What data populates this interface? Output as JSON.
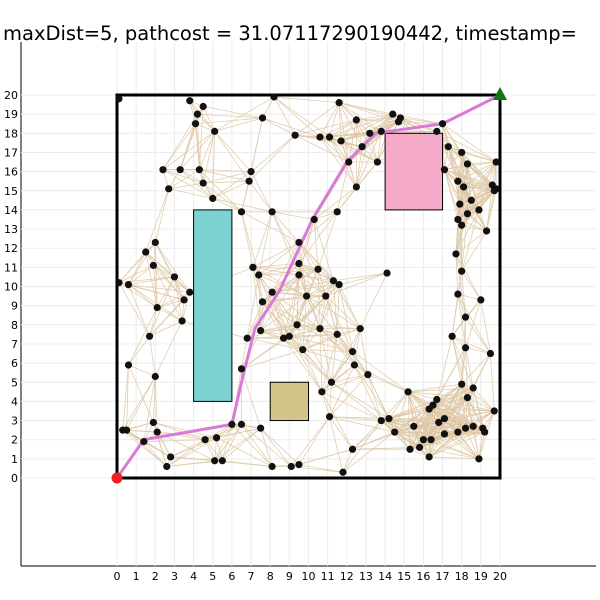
{
  "chart_data": {
    "type": "scatter",
    "title": "maxDist=5,  pathcost = 31.07117290190442, timestamp=",
    "xlabel": "",
    "ylabel": "",
    "xlim": [
      0,
      20
    ],
    "ylim": [
      0,
      20
    ],
    "xticks": [
      "0",
      "1",
      "2",
      "3",
      "4",
      "5",
      "6",
      "7",
      "8",
      "9",
      "10",
      "11",
      "12",
      "13",
      "14",
      "15",
      "16",
      "17",
      "18",
      "19",
      "20"
    ],
    "yticks": [
      "0",
      "1",
      "2",
      "3",
      "4",
      "5",
      "6",
      "7",
      "8",
      "9",
      "10",
      "11",
      "12",
      "13",
      "14",
      "15",
      "16",
      "17",
      "18",
      "19",
      "20"
    ],
    "grid": true,
    "legend": "none",
    "boundary": [
      [
        0,
        0
      ],
      [
        20,
        0
      ],
      [
        20,
        20
      ],
      [
        0,
        20
      ]
    ],
    "obstacles": [
      {
        "x": 4,
        "y": 4,
        "w": 2,
        "h": 10,
        "color": "#7dd3d3"
      },
      {
        "x": 14,
        "y": 14,
        "w": 3,
        "h": 4,
        "color": "#f4aac8"
      },
      {
        "x": 8,
        "y": 3,
        "w": 2,
        "h": 2,
        "color": "#d4c48a"
      }
    ],
    "start": [
      0,
      0
    ],
    "goal": [
      20,
      20
    ],
    "start_color": "#ee2222",
    "goal_color": "#117711",
    "edge_color": "#ddc6a2",
    "node_color": "#111111",
    "path_color": "#d87ad8",
    "path": [
      [
        0,
        0
      ],
      [
        1.4,
        2.0
      ],
      [
        6.0,
        2.8
      ],
      [
        6.5,
        5.0
      ],
      [
        7.2,
        7.8
      ],
      [
        8.5,
        9.8
      ],
      [
        10.2,
        13.5
      ],
      [
        12.0,
        16.5
      ],
      [
        13.5,
        18.0
      ],
      [
        17.0,
        18.5
      ],
      [
        20,
        20
      ]
    ],
    "nodes": [
      [
        0.1,
        19.8
      ],
      [
        3.8,
        19.7
      ],
      [
        4.5,
        19.4
      ],
      [
        4.2,
        19.0
      ],
      [
        4.1,
        18.5
      ],
      [
        5.1,
        18.1
      ],
      [
        7.6,
        18.8
      ],
      [
        8.2,
        19.9
      ],
      [
        9.3,
        17.9
      ],
      [
        10.6,
        17.8
      ],
      [
        11.1,
        17.8
      ],
      [
        11.7,
        17.6
      ],
      [
        11.6,
        19.6
      ],
      [
        12.5,
        18.7
      ],
      [
        13.2,
        18.0
      ],
      [
        13.8,
        18.1
      ],
      [
        14.4,
        19.0
      ],
      [
        14.7,
        18.6
      ],
      [
        14.8,
        18.8
      ],
      [
        16.7,
        18.1
      ],
      [
        17.0,
        18.5
      ],
      [
        17.3,
        17.3
      ],
      [
        18.0,
        17.0
      ],
      [
        18.3,
        16.4
      ],
      [
        17.1,
        16.1
      ],
      [
        17.8,
        15.5
      ],
      [
        18.1,
        15.2
      ],
      [
        18.5,
        14.5
      ],
      [
        17.9,
        14.3
      ],
      [
        18.9,
        14.0
      ],
      [
        18.3,
        13.8
      ],
      [
        17.8,
        13.5
      ],
      [
        18.0,
        13.2
      ],
      [
        19.3,
        12.9
      ],
      [
        19.6,
        15.3
      ],
      [
        19.8,
        15.1
      ],
      [
        19.8,
        16.5
      ],
      [
        19.7,
        15.0
      ],
      [
        2.4,
        16.1
      ],
      [
        3.3,
        16.1
      ],
      [
        4.3,
        16.1
      ],
      [
        4.5,
        15.4
      ],
      [
        5.0,
        14.6
      ],
      [
        2.7,
        15.1
      ],
      [
        7.0,
        16.0
      ],
      [
        6.9,
        15.5
      ],
      [
        6.5,
        13.9
      ],
      [
        8.1,
        13.9
      ],
      [
        10.3,
        13.5
      ],
      [
        11.5,
        13.9
      ],
      [
        12.1,
        16.5
      ],
      [
        12.5,
        15.2
      ],
      [
        12.8,
        17.3
      ],
      [
        13.6,
        16.5
      ],
      [
        2.0,
        12.3
      ],
      [
        1.5,
        11.8
      ],
      [
        1.9,
        11.1
      ],
      [
        3.0,
        10.5
      ],
      [
        0.1,
        10.2
      ],
      [
        0.6,
        10.1
      ],
      [
        2.1,
        8.9
      ],
      [
        3.5,
        9.3
      ],
      [
        3.8,
        9.7
      ],
      [
        3.4,
        8.2
      ],
      [
        1.7,
        7.4
      ],
      [
        0.6,
        5.9
      ],
      [
        2.0,
        5.3
      ],
      [
        7.1,
        11.0
      ],
      [
        7.4,
        10.6
      ],
      [
        7.6,
        9.2
      ],
      [
        8.1,
        9.7
      ],
      [
        9.5,
        11.2
      ],
      [
        9.5,
        10.6
      ],
      [
        10.5,
        10.9
      ],
      [
        9.5,
        12.3
      ],
      [
        9.9,
        9.5
      ],
      [
        10.9,
        9.5
      ],
      [
        11.3,
        10.3
      ],
      [
        11.6,
        10.1
      ],
      [
        14.1,
        10.7
      ],
      [
        17.7,
        11.7
      ],
      [
        18.0,
        10.8
      ],
      [
        17.8,
        9.6
      ],
      [
        19.0,
        9.3
      ],
      [
        18.2,
        8.4
      ],
      [
        9.4,
        8.0
      ],
      [
        8.7,
        7.3
      ],
      [
        9.0,
        7.4
      ],
      [
        10.6,
        7.8
      ],
      [
        9.7,
        6.7
      ],
      [
        10.7,
        4.5
      ],
      [
        11.2,
        5.0
      ],
      [
        6.8,
        7.3
      ],
      [
        7.5,
        7.7
      ],
      [
        6.5,
        5.7
      ],
      [
        11.5,
        7.5
      ],
      [
        12.3,
        6.6
      ],
      [
        12.7,
        7.8
      ],
      [
        12.4,
        5.9
      ],
      [
        13.1,
        5.4
      ],
      [
        17.5,
        7.4
      ],
      [
        18.2,
        6.8
      ],
      [
        19.5,
        6.5
      ],
      [
        15.2,
        4.5
      ],
      [
        16.5,
        3.8
      ],
      [
        16.7,
        4.1
      ],
      [
        18.0,
        4.9
      ],
      [
        18.6,
        4.7
      ],
      [
        18.3,
        4.2
      ],
      [
        19.7,
        3.5
      ],
      [
        13.8,
        3.0
      ],
      [
        14.2,
        3.1
      ],
      [
        16.3,
        3.6
      ],
      [
        17.1,
        3.1
      ],
      [
        16.8,
        2.9
      ],
      [
        18.2,
        2.6
      ],
      [
        18.6,
        2.7
      ],
      [
        19.1,
        2.6
      ],
      [
        17.8,
        2.4
      ],
      [
        15.5,
        2.7
      ],
      [
        14.5,
        2.4
      ],
      [
        16.0,
        2.0
      ],
      [
        17.1,
        2.3
      ],
      [
        15.8,
        1.6
      ],
      [
        15.3,
        1.5
      ],
      [
        12.3,
        1.5
      ],
      [
        16.3,
        1.1
      ],
      [
        16.4,
        2.0
      ],
      [
        18.9,
        1.0
      ],
      [
        19.2,
        2.4
      ],
      [
        11.1,
        3.2
      ],
      [
        0.3,
        2.5
      ],
      [
        0.5,
        2.5
      ],
      [
        1.9,
        2.9
      ],
      [
        2.1,
        2.4
      ],
      [
        1.4,
        1.9
      ],
      [
        2.8,
        1.1
      ],
      [
        2.6,
        0.6
      ],
      [
        4.6,
        2.0
      ],
      [
        5.2,
        2.1
      ],
      [
        6.0,
        2.8
      ],
      [
        6.5,
        2.8
      ],
      [
        7.5,
        2.6
      ],
      [
        5.1,
        0.9
      ],
      [
        5.5,
        0.9
      ],
      [
        8.1,
        0.6
      ],
      [
        9.1,
        0.6
      ],
      [
        9.5,
        0.7
      ],
      [
        11.8,
        0.3
      ]
    ]
  }
}
